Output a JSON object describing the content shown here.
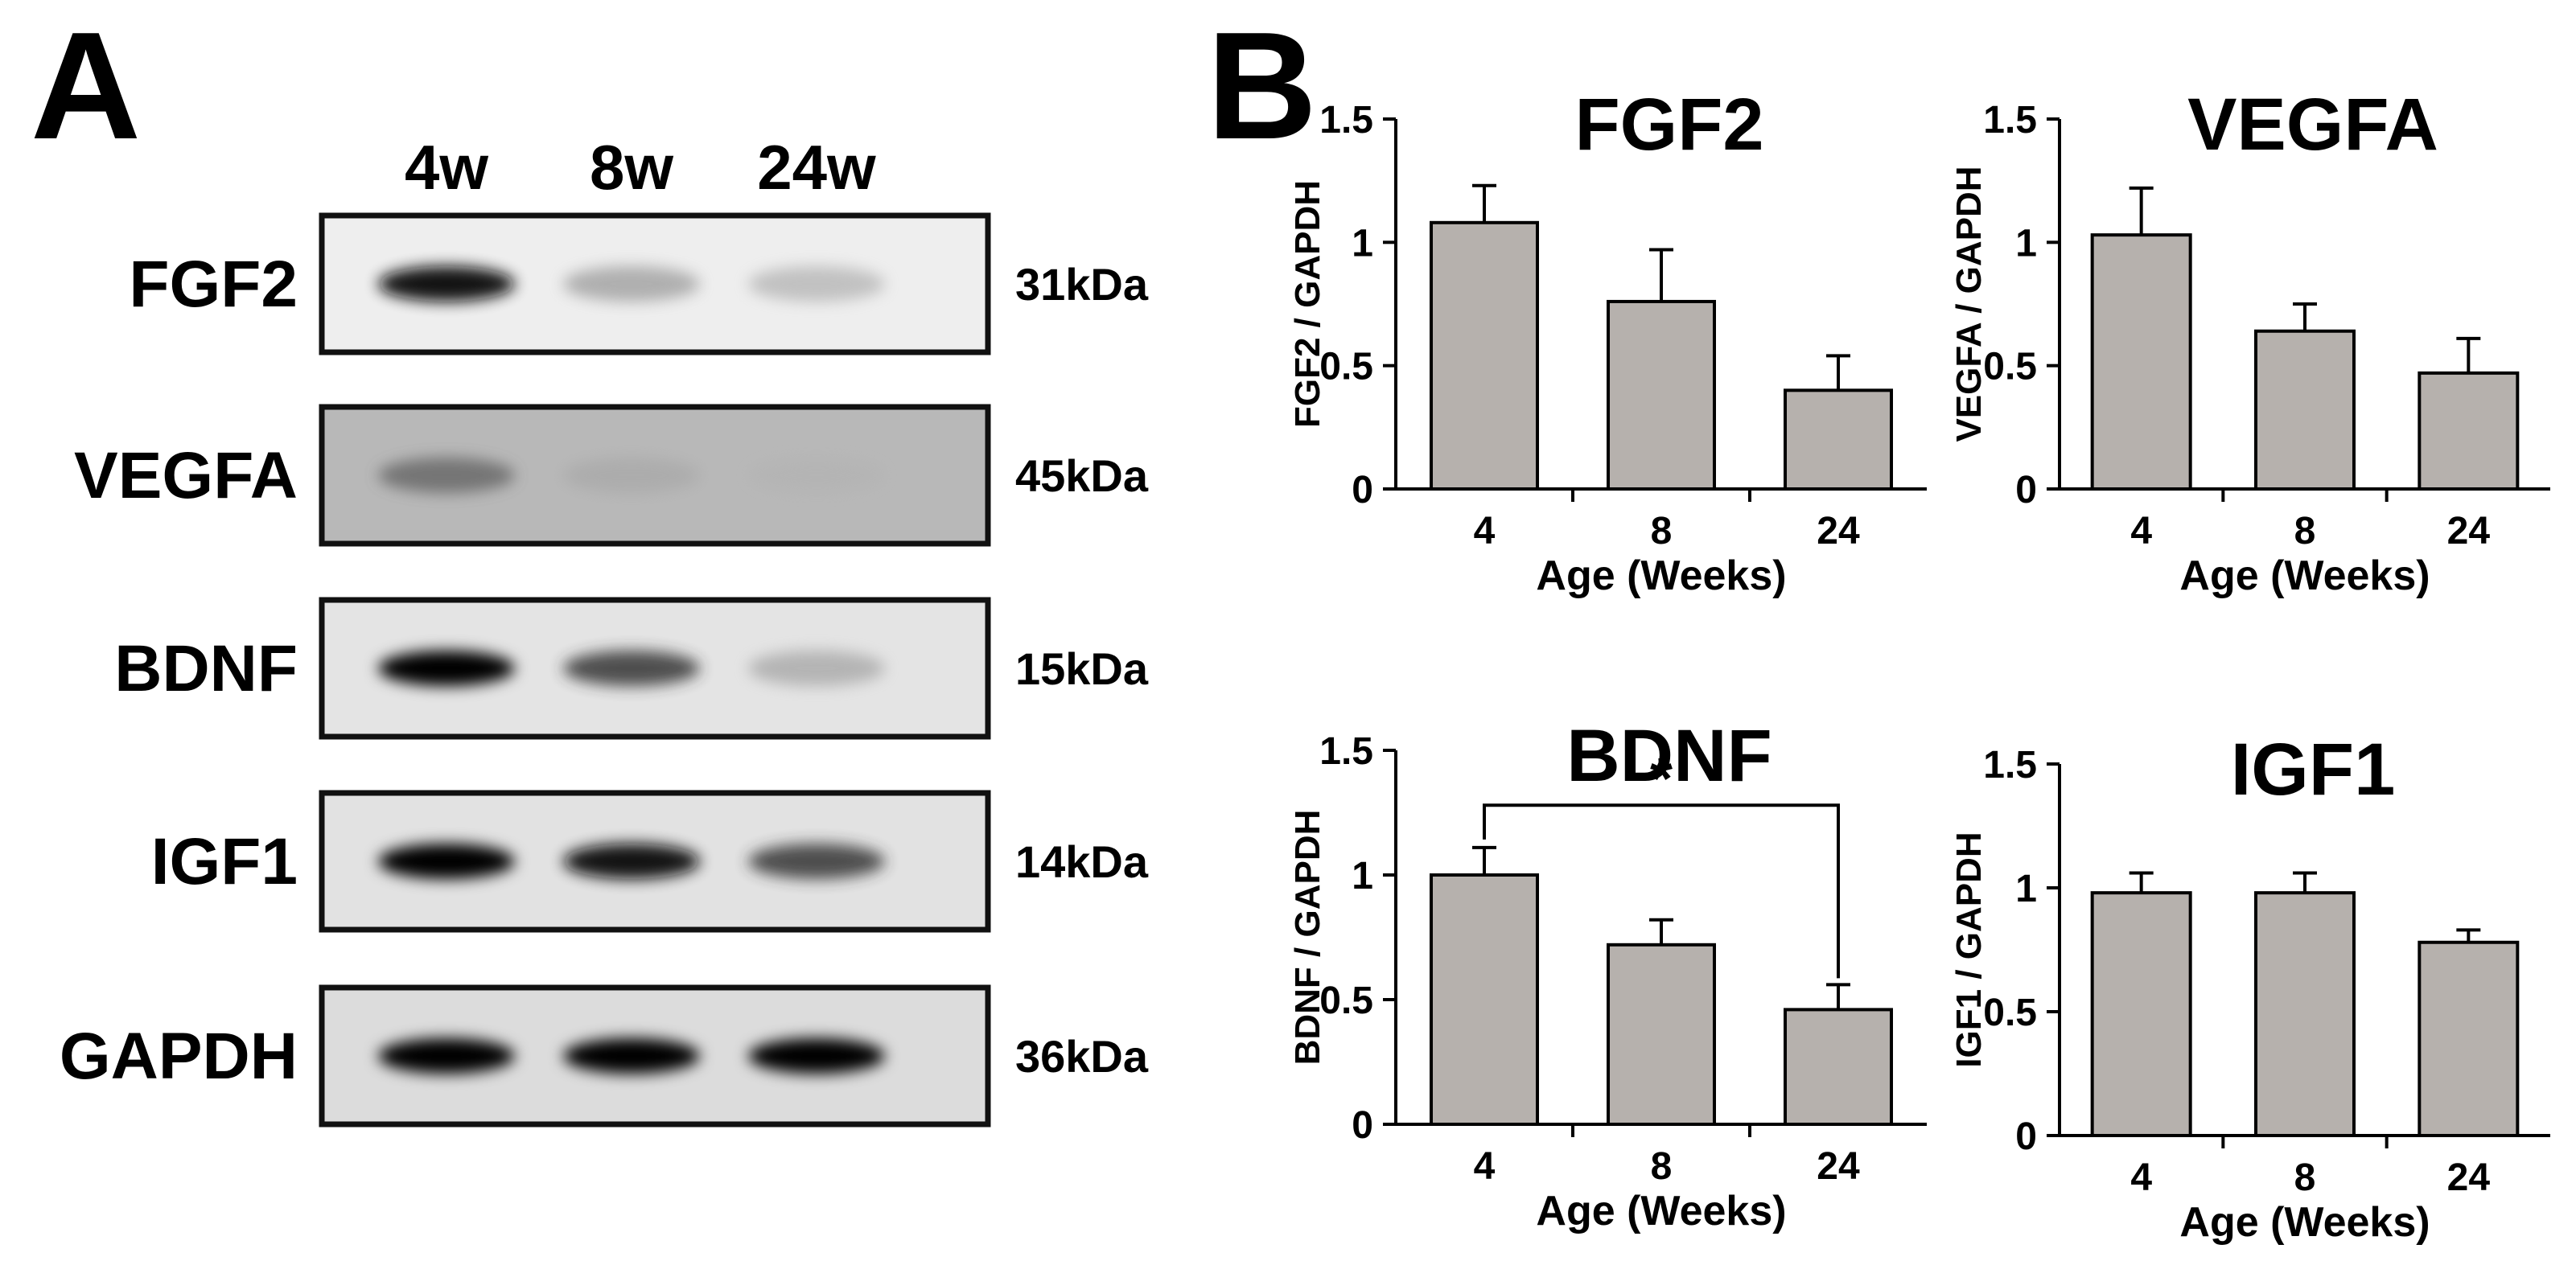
{
  "panels": {
    "a_label": "A",
    "b_label": "B"
  },
  "western_blot": {
    "lanes": [
      "4w",
      "8w",
      "24w"
    ],
    "rows": [
      {
        "protein": "FGF2",
        "mw": "31kDa",
        "bg": "#eeeeee",
        "band_darkness": [
          0.95,
          0.35,
          0.25
        ]
      },
      {
        "protein": "VEGFA",
        "mw": "45kDa",
        "bg": "#b8b8b8",
        "band_darkness": [
          0.55,
          0.2,
          0.12
        ]
      },
      {
        "protein": "BDNF",
        "mw": "15kDa",
        "bg": "#e4e4e4",
        "band_darkness": [
          1.0,
          0.75,
          0.3
        ]
      },
      {
        "protein": "IGF1",
        "mw": "14kDa",
        "bg": "#e2e2e2",
        "band_darkness": [
          1.0,
          0.95,
          0.75
        ]
      },
      {
        "protein": "GAPDH",
        "mw": "36kDa",
        "bg": "#dcdcdc",
        "band_darkness": [
          1.0,
          1.0,
          1.0
        ]
      }
    ]
  },
  "chart_data": [
    {
      "type": "bar",
      "title": "FGF2",
      "ylabel": "FGF2 / GAPDH",
      "xlabel": "Age (Weeks)",
      "categories": [
        "4",
        "8",
        "24"
      ],
      "values": [
        1.08,
        0.76,
        0.4
      ],
      "errors": [
        0.15,
        0.21,
        0.14
      ],
      "ylim": [
        0,
        1.5
      ],
      "yticks": [
        "0",
        "0.5",
        "1",
        "1.5"
      ],
      "bar_color": "#b6b1ad",
      "significance": null
    },
    {
      "type": "bar",
      "title": "VEGFA",
      "ylabel": "VEGFA / GAPDH",
      "xlabel": "Age (Weeks)",
      "categories": [
        "4",
        "8",
        "24"
      ],
      "values": [
        1.03,
        0.64,
        0.47
      ],
      "errors": [
        0.19,
        0.11,
        0.14
      ],
      "ylim": [
        0,
        1.5
      ],
      "yticks": [
        "0",
        "0.5",
        "1",
        "1.5"
      ],
      "bar_color": "#b6b1ad",
      "significance": null
    },
    {
      "type": "bar",
      "title": "BDNF",
      "ylabel": "BDNF / GAPDH",
      "xlabel": "Age (Weeks)",
      "categories": [
        "4",
        "8",
        "24"
      ],
      "values": [
        1.0,
        0.72,
        0.46
      ],
      "errors": [
        0.11,
        0.1,
        0.1
      ],
      "ylim": [
        0,
        1.5
      ],
      "yticks": [
        "0",
        "0.5",
        "1",
        "1.5"
      ],
      "bar_color": "#b6b1ad",
      "significance": {
        "from": 0,
        "to": 2,
        "label": "*",
        "level": 1.28
      }
    },
    {
      "type": "bar",
      "title": "IGF1",
      "ylabel": "IGF1 / GAPDH",
      "xlabel": "Age (Weeks)",
      "categories": [
        "4",
        "8",
        "24"
      ],
      "values": [
        0.98,
        0.98,
        0.78
      ],
      "errors": [
        0.08,
        0.08,
        0.05
      ],
      "ylim": [
        0,
        1.5
      ],
      "yticks": [
        "0",
        "0.5",
        "1",
        "1.5"
      ],
      "bar_color": "#b6b1ad",
      "significance": null
    }
  ]
}
